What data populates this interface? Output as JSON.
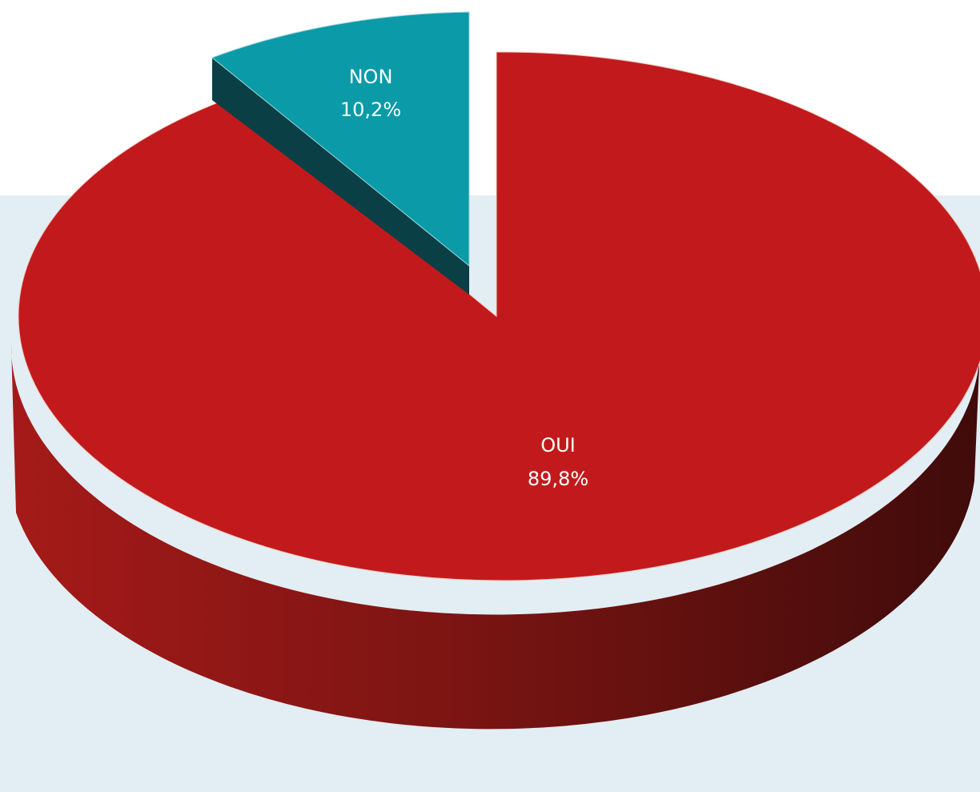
{
  "chart_data": {
    "type": "pie",
    "style": "3d-exploded",
    "title": "",
    "slices": [
      {
        "name": "OUI",
        "value": 89.8,
        "label": "89,8%",
        "color": "#c21a1c"
      },
      {
        "name": "NON",
        "value": 10.2,
        "label": "10,2%",
        "color": "#0b9aa8"
      }
    ],
    "exploded": "NON",
    "legend": "none",
    "colors": {
      "panel_background": "#e2eef3",
      "oui_side_light": "#a51a19",
      "oui_side_dark": "#430c0b",
      "non_side": "#0b3f46"
    }
  }
}
